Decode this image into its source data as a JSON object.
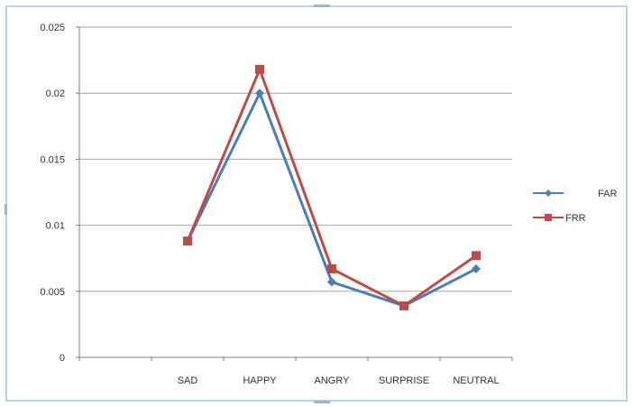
{
  "chart_data": {
    "type": "line",
    "categories": [
      "",
      "SAD",
      "HAPPY",
      "ANGRY",
      "SURPRISE",
      "NEUTRAL"
    ],
    "series": [
      {
        "name": "FAR",
        "color": "#4a7ebb",
        "marker": "diamond",
        "values": [
          null,
          0.0088,
          0.02,
          0.0057,
          0.0039,
          0.0067
        ]
      },
      {
        "name": "FRR",
        "color": "#be4b48",
        "marker": "square",
        "values": [
          null,
          0.0088,
          0.0218,
          0.0067,
          0.0039,
          0.0077
        ]
      }
    ],
    "ylim": [
      0,
      0.025
    ],
    "yticks": [
      "0",
      "0.005",
      "0.01",
      "0.015",
      "0.02",
      "0.025"
    ],
    "grid": true,
    "legend_position": "right"
  }
}
